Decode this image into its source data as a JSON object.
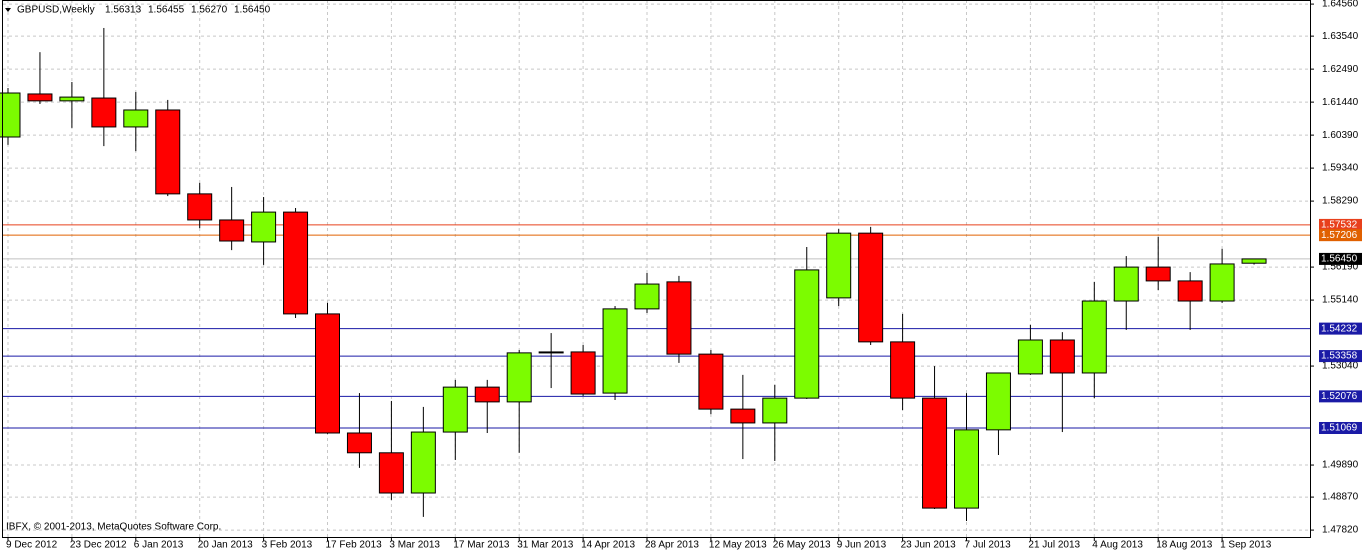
{
  "chart_data": {
    "type": "candlestick",
    "title": "GBPUSD,Weekly",
    "header_values": [
      "1.56313",
      "1.56455",
      "1.56270",
      "1.56450"
    ],
    "copyright": "IBFX, © 2001-2013, MetaQuotes Software Corp.",
    "categories": [
      "9 Dec 2012",
      null,
      "23 Dec 2012",
      null,
      "6 Jan 2013",
      null,
      "20 Jan 2013",
      null,
      "3 Feb 2013",
      null,
      "17 Feb 2013",
      null,
      "3 Mar 2013",
      null,
      "17 Mar 2013",
      null,
      "31 Mar 2013",
      null,
      "14 Apr 2013",
      null,
      "28 Apr 2013",
      null,
      "12 May 2013",
      null,
      "26 May 2013",
      null,
      "9 Jun 2013",
      null,
      "23 Jun 2013",
      null,
      "7 Jul 2013",
      null,
      "21 Jul 2013",
      null,
      "4 Aug 2013",
      null,
      "18 Aug 2013",
      null,
      "1 Sep 2013",
      null
    ],
    "open": [
      1.6033,
      1.617,
      1.6148,
      1.6157,
      1.6065,
      1.6119,
      1.5852,
      1.5769,
      1.5699,
      1.5794,
      1.547,
      1.5091,
      1.5028,
      1.49,
      1.5094,
      1.5237,
      1.519,
      1.5346,
      1.5349,
      1.5218,
      1.5486,
      1.5572,
      1.5342,
      1.5167,
      1.5123,
      1.5202,
      1.5521,
      1.5727,
      1.5381,
      1.5202,
      1.4852,
      1.5101,
      1.5279,
      1.5387,
      1.5282,
      1.5511,
      1.5619,
      1.5575,
      1.5511,
      1.56313
    ],
    "high": [
      1.6189,
      1.6303,
      1.6208,
      1.638,
      1.6176,
      1.6151,
      1.5887,
      1.5874,
      1.5842,
      1.5807,
      1.5505,
      1.5218,
      1.5193,
      1.5174,
      1.526,
      1.526,
      1.5355,
      1.5409,
      1.5371,
      1.5495,
      1.56,
      1.5591,
      1.5355,
      1.5276,
      1.5244,
      1.5683,
      1.574,
      1.5747,
      1.547,
      1.5304,
      1.5218,
      1.5282,
      1.5435,
      1.5412,
      1.5572,
      1.5654,
      1.5715,
      1.5603,
      1.5677,
      1.56455
    ],
    "low": [
      1.6008,
      1.6138,
      1.6062,
      1.6004,
      1.5988,
      1.5845,
      1.5743,
      1.5673,
      1.5626,
      1.5457,
      1.5088,
      1.498,
      1.4878,
      1.4824,
      1.5005,
      1.5091,
      1.5028,
      1.5234,
      1.5209,
      1.5196,
      1.5473,
      1.5314,
      1.5151,
      1.5008,
      1.5002,
      1.5199,
      1.5495,
      1.5371,
      1.5164,
      1.4849,
      1.4811,
      1.5021,
      1.5276,
      1.5094,
      1.5202,
      1.5419,
      1.5546,
      1.5419,
      1.5505,
      1.5627
    ],
    "close": [
      1.6173,
      1.6148,
      1.616,
      1.6065,
      1.6119,
      1.5852,
      1.5769,
      1.5702,
      1.5794,
      1.547,
      1.5091,
      1.5028,
      1.49,
      1.5094,
      1.5237,
      1.519,
      1.5346,
      1.5349,
      1.5215,
      1.5486,
      1.5565,
      1.5342,
      1.5167,
      1.5123,
      1.5202,
      1.561,
      1.5727,
      1.5381,
      1.5202,
      1.4852,
      1.5101,
      1.5282,
      1.5387,
      1.5282,
      1.5511,
      1.5619,
      1.5575,
      1.5511,
      1.5629,
      1.5645
    ],
    "up_color": "#7cfc00",
    "down_color": "#ff0000",
    "ylim": [
      1.476,
      1.6469
    ],
    "yticks": [
      {
        "value": 1.6456,
        "label": "1.64560"
      },
      {
        "value": 1.6354,
        "label": "1.63540"
      },
      {
        "value": 1.6249,
        "label": "1.62490"
      },
      {
        "value": 1.6144,
        "label": "1.61440"
      },
      {
        "value": 1.6039,
        "label": "1.60390"
      },
      {
        "value": 1.5934,
        "label": "1.59340"
      },
      {
        "value": 1.5829,
        "label": "1.58290"
      },
      {
        "value": 1.5619,
        "label": "1.56190"
      },
      {
        "value": 1.5514,
        "label": "1.55140"
      },
      {
        "value": 1.5304,
        "label": "1.53040"
      },
      {
        "value": 1.4989,
        "label": "1.49890"
      },
      {
        "value": 1.4887,
        "label": "1.48870"
      },
      {
        "value": 1.4782,
        "label": "1.47820"
      }
    ],
    "grid": true,
    "levels": [
      {
        "value": 1.57532,
        "label": "1.57532",
        "color": "#e8401c"
      },
      {
        "value": 1.57206,
        "label": "1.57206",
        "color": "#e06000"
      },
      {
        "value": 1.5645,
        "label": "1.56450",
        "color": "#000000"
      },
      {
        "value": 1.54232,
        "label": "1.54232",
        "color": "#1a1aa6"
      },
      {
        "value": 1.53358,
        "label": "1.53358",
        "color": "#1a1aa6"
      },
      {
        "value": 1.52076,
        "label": "1.52076",
        "color": "#1a1aa6"
      },
      {
        "value": 1.51069,
        "label": "1.51069",
        "color": "#1a1aa6"
      }
    ]
  }
}
